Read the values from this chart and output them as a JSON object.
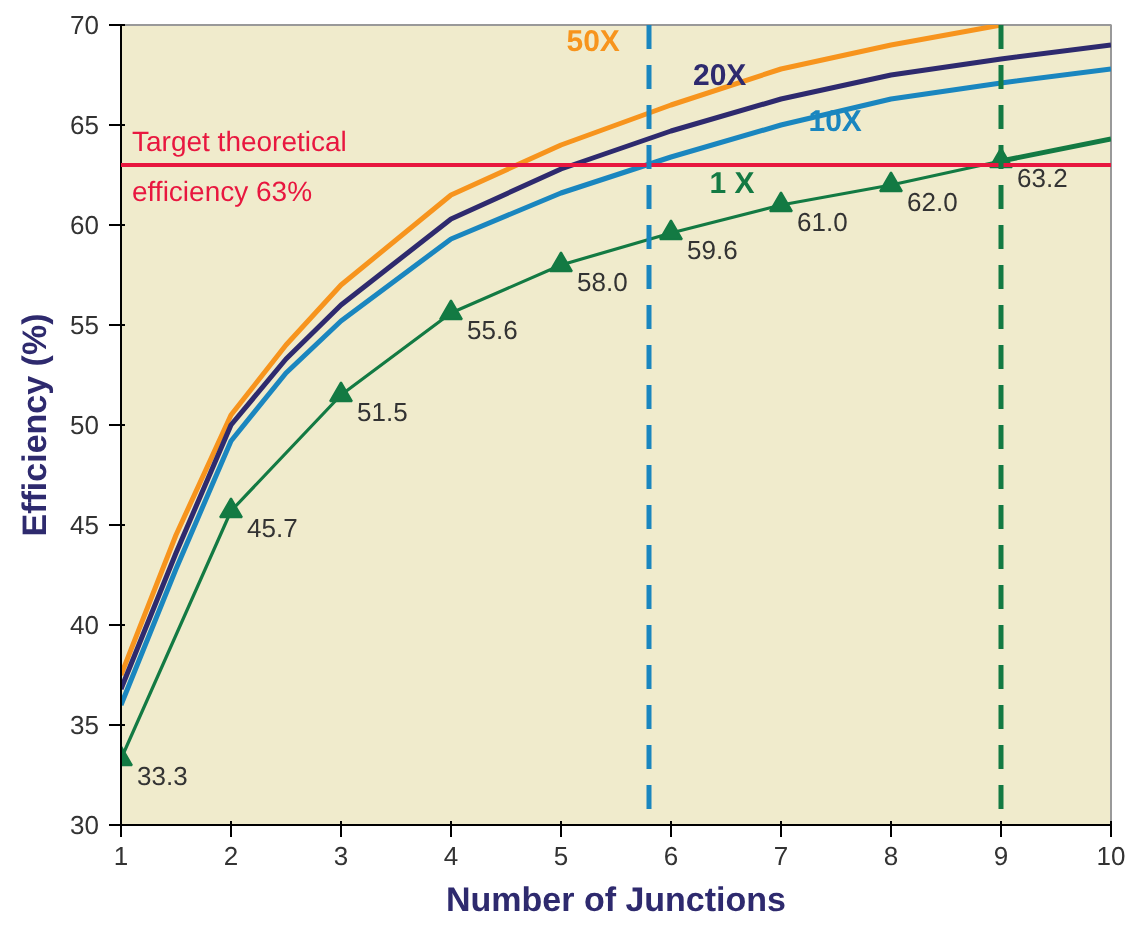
{
  "chart_data": {
    "type": "line",
    "xlabel": "Number of Junctions",
    "ylabel": "Efficiency (%)",
    "xlim": [
      1,
      10
    ],
    "xticks": [
      1,
      2,
      3,
      4,
      5,
      6,
      7,
      8,
      9,
      10
    ],
    "ylim": [
      30,
      70
    ],
    "yticks": [
      30,
      35,
      40,
      45,
      50,
      55,
      60,
      65,
      70
    ],
    "grid": false,
    "series": [
      {
        "name": "50X",
        "color": "#f7941d",
        "x": [
          1,
          1.5,
          2,
          2.5,
          3,
          4,
          5,
          6,
          7,
          8,
          9
        ],
        "values": [
          37.5,
          44.5,
          50.5,
          54,
          57,
          61.5,
          64,
          66,
          67.8,
          69,
          70
        ],
        "marker": "none"
      },
      {
        "name": "20X",
        "color": "#2e2a6e",
        "x": [
          1,
          1.5,
          2,
          2.5,
          3,
          4,
          5,
          6,
          7,
          8,
          9,
          10
        ],
        "values": [
          36.8,
          43.6,
          50,
          53.3,
          56,
          60.3,
          62.8,
          64.7,
          66.3,
          67.5,
          68.3,
          69
        ],
        "marker": "none"
      },
      {
        "name": "10X",
        "color": "#1a86bf",
        "x": [
          1,
          1.5,
          2,
          2.5,
          3,
          4,
          5,
          6,
          7,
          8,
          9,
          10
        ],
        "values": [
          36,
          42.8,
          49.2,
          52.6,
          55.2,
          59.3,
          61.6,
          63.4,
          65,
          66.3,
          67.1,
          67.8
        ],
        "marker": "none"
      },
      {
        "name": "1 X",
        "color": "#137a43",
        "x": [
          1,
          2,
          3,
          4,
          5,
          6,
          7,
          8,
          9
        ],
        "values": [
          33.3,
          45.7,
          51.5,
          55.6,
          58.0,
          59.6,
          61.0,
          62.0,
          63.2
        ],
        "marker": "triangle",
        "value_labels": [
          "33.3",
          "45.7",
          "51.5",
          "55.6",
          "58.0",
          "59.6",
          "61.0",
          "62.0",
          "63.2"
        ]
      },
      {
        "color": "#137a43",
        "x": [
          9,
          10
        ],
        "values": [
          63.2,
          64.3
        ],
        "marker": "none"
      }
    ],
    "ref_lines": [
      {
        "axis": "y",
        "value": 63,
        "label": "Target theoretical\nefficiency 63%",
        "color": "#e8173f",
        "line_style": "solid"
      },
      {
        "axis": "x",
        "value": 5.8,
        "color": "#1a86bf",
        "line_style": "dashed"
      },
      {
        "axis": "x",
        "value": 9,
        "color": "#137a43",
        "line_style": "dashed"
      }
    ]
  }
}
